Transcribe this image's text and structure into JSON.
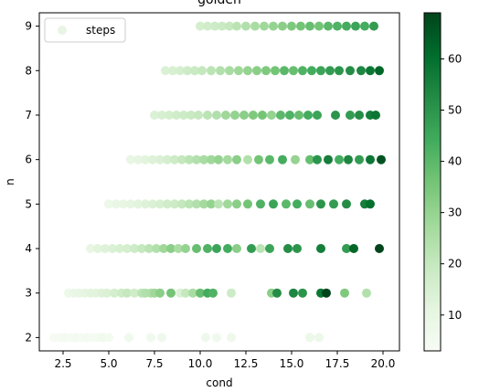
{
  "chart_data": {
    "type": "scatter",
    "title": "golden",
    "xlabel": "cond",
    "ylabel": "n",
    "xlim": [
      1.2,
      20.9
    ],
    "ylim": [
      1.7,
      9.3
    ],
    "xticks": [
      2.5,
      5.0,
      7.5,
      10.0,
      12.5,
      15.0,
      17.5,
      20.0
    ],
    "xtick_labels": [
      "2.5",
      "5.0",
      "7.5",
      "10.0",
      "12.5",
      "15.0",
      "17.5",
      "20.0"
    ],
    "yticks": [
      2,
      3,
      4,
      5,
      6,
      7,
      8,
      9
    ],
    "ytick_labels": [
      "2",
      "3",
      "4",
      "5",
      "6",
      "7",
      "8",
      "9"
    ],
    "legend": {
      "label": "steps",
      "position": "upper-left"
    },
    "colormap": "Greens",
    "colorbar": {
      "range": [
        3,
        69
      ],
      "ticks": [
        10,
        20,
        30,
        40,
        50,
        60
      ],
      "tick_labels": [
        "10",
        "20",
        "30",
        "40",
        "50",
        "60"
      ]
    },
    "series": [
      {
        "points": [
          {
            "n": 2,
            "x": 2.0,
            "v": 4
          },
          {
            "n": 2,
            "x": 2.3,
            "v": 4
          },
          {
            "n": 2,
            "x": 2.6,
            "v": 5
          },
          {
            "n": 2,
            "x": 2.9,
            "v": 4
          },
          {
            "n": 2,
            "x": 3.2,
            "v": 5
          },
          {
            "n": 2,
            "x": 3.5,
            "v": 4
          },
          {
            "n": 2,
            "x": 3.8,
            "v": 5
          },
          {
            "n": 2,
            "x": 4.1,
            "v": 4
          },
          {
            "n": 2,
            "x": 4.4,
            "v": 5
          },
          {
            "n": 2,
            "x": 4.7,
            "v": 6
          },
          {
            "n": 2,
            "x": 5.0,
            "v": 5
          },
          {
            "n": 2,
            "x": 6.1,
            "v": 6
          },
          {
            "n": 2,
            "x": 7.3,
            "v": 6
          },
          {
            "n": 2,
            "x": 7.9,
            "v": 7
          },
          {
            "n": 2,
            "x": 10.3,
            "v": 7
          },
          {
            "n": 2,
            "x": 10.9,
            "v": 6
          },
          {
            "n": 2,
            "x": 11.7,
            "v": 7
          },
          {
            "n": 2,
            "x": 16.0,
            "v": 8
          },
          {
            "n": 2,
            "x": 16.5,
            "v": 8
          },
          {
            "n": 3,
            "x": 2.8,
            "v": 8
          },
          {
            "n": 3,
            "x": 3.1,
            "v": 9
          },
          {
            "n": 3,
            "x": 3.4,
            "v": 10
          },
          {
            "n": 3,
            "x": 3.7,
            "v": 11
          },
          {
            "n": 3,
            "x": 4.0,
            "v": 12
          },
          {
            "n": 3,
            "x": 4.3,
            "v": 12
          },
          {
            "n": 3,
            "x": 4.6,
            "v": 13
          },
          {
            "n": 3,
            "x": 4.9,
            "v": 14
          },
          {
            "n": 3,
            "x": 5.3,
            "v": 16
          },
          {
            "n": 3,
            "x": 5.7,
            "v": 18
          },
          {
            "n": 3,
            "x": 6.0,
            "v": 20
          },
          {
            "n": 3,
            "x": 6.4,
            "v": 17
          },
          {
            "n": 3,
            "x": 6.8,
            "v": 22
          },
          {
            "n": 3,
            "x": 7.0,
            "v": 24
          },
          {
            "n": 3,
            "x": 7.3,
            "v": 25
          },
          {
            "n": 3,
            "x": 7.5,
            "v": 28
          },
          {
            "n": 3,
            "x": 7.8,
            "v": 32
          },
          {
            "n": 3,
            "x": 8.4,
            "v": 36
          },
          {
            "n": 3,
            "x": 8.9,
            "v": 14
          },
          {
            "n": 3,
            "x": 9.2,
            "v": 20
          },
          {
            "n": 3,
            "x": 9.6,
            "v": 26
          },
          {
            "n": 3,
            "x": 10.0,
            "v": 38
          },
          {
            "n": 3,
            "x": 10.4,
            "v": 44
          },
          {
            "n": 3,
            "x": 10.7,
            "v": 42
          },
          {
            "n": 3,
            "x": 11.7,
            "v": 18
          },
          {
            "n": 3,
            "x": 13.9,
            "v": 32
          },
          {
            "n": 3,
            "x": 14.2,
            "v": 52
          },
          {
            "n": 3,
            "x": 15.1,
            "v": 54
          },
          {
            "n": 3,
            "x": 15.6,
            "v": 50
          },
          {
            "n": 3,
            "x": 16.6,
            "v": 58
          },
          {
            "n": 3,
            "x": 16.9,
            "v": 69
          },
          {
            "n": 3,
            "x": 17.9,
            "v": 34
          },
          {
            "n": 3,
            "x": 19.1,
            "v": 24
          },
          {
            "n": 4,
            "x": 4.0,
            "v": 10
          },
          {
            "n": 4,
            "x": 4.4,
            "v": 12
          },
          {
            "n": 4,
            "x": 4.8,
            "v": 13
          },
          {
            "n": 4,
            "x": 5.2,
            "v": 14
          },
          {
            "n": 4,
            "x": 5.6,
            "v": 15
          },
          {
            "n": 4,
            "x": 6.0,
            "v": 16
          },
          {
            "n": 4,
            "x": 6.4,
            "v": 18
          },
          {
            "n": 4,
            "x": 6.8,
            "v": 20
          },
          {
            "n": 4,
            "x": 7.2,
            "v": 22
          },
          {
            "n": 4,
            "x": 7.6,
            "v": 24
          },
          {
            "n": 4,
            "x": 8.0,
            "v": 28
          },
          {
            "n": 4,
            "x": 8.4,
            "v": 32
          },
          {
            "n": 4,
            "x": 8.8,
            "v": 26
          },
          {
            "n": 4,
            "x": 9.2,
            "v": 30
          },
          {
            "n": 4,
            "x": 9.8,
            "v": 38
          },
          {
            "n": 4,
            "x": 10.4,
            "v": 42
          },
          {
            "n": 4,
            "x": 10.9,
            "v": 46
          },
          {
            "n": 4,
            "x": 11.5,
            "v": 44
          },
          {
            "n": 4,
            "x": 12.0,
            "v": 32
          },
          {
            "n": 4,
            "x": 12.8,
            "v": 48
          },
          {
            "n": 4,
            "x": 13.3,
            "v": 22
          },
          {
            "n": 4,
            "x": 13.8,
            "v": 46
          },
          {
            "n": 4,
            "x": 14.8,
            "v": 52
          },
          {
            "n": 4,
            "x": 15.3,
            "v": 50
          },
          {
            "n": 4,
            "x": 16.6,
            "v": 56
          },
          {
            "n": 4,
            "x": 18.0,
            "v": 48
          },
          {
            "n": 4,
            "x": 18.4,
            "v": 62
          },
          {
            "n": 4,
            "x": 19.8,
            "v": 69
          },
          {
            "n": 5,
            "x": 5.0,
            "v": 8
          },
          {
            "n": 5,
            "x": 5.4,
            "v": 9
          },
          {
            "n": 5,
            "x": 5.8,
            "v": 10
          },
          {
            "n": 5,
            "x": 6.2,
            "v": 11
          },
          {
            "n": 5,
            "x": 6.6,
            "v": 12
          },
          {
            "n": 5,
            "x": 7.0,
            "v": 13
          },
          {
            "n": 5,
            "x": 7.4,
            "v": 14
          },
          {
            "n": 5,
            "x": 7.8,
            "v": 15
          },
          {
            "n": 5,
            "x": 8.2,
            "v": 17
          },
          {
            "n": 5,
            "x": 8.6,
            "v": 18
          },
          {
            "n": 5,
            "x": 9.0,
            "v": 20
          },
          {
            "n": 5,
            "x": 9.4,
            "v": 22
          },
          {
            "n": 5,
            "x": 9.8,
            "v": 24
          },
          {
            "n": 5,
            "x": 10.2,
            "v": 27
          },
          {
            "n": 5,
            "x": 10.6,
            "v": 30
          },
          {
            "n": 5,
            "x": 11.0,
            "v": 22
          },
          {
            "n": 5,
            "x": 11.5,
            "v": 28
          },
          {
            "n": 5,
            "x": 12.0,
            "v": 32
          },
          {
            "n": 5,
            "x": 12.6,
            "v": 36
          },
          {
            "n": 5,
            "x": 13.3,
            "v": 42
          },
          {
            "n": 5,
            "x": 14.0,
            "v": 46
          },
          {
            "n": 5,
            "x": 14.7,
            "v": 40
          },
          {
            "n": 5,
            "x": 15.3,
            "v": 44
          },
          {
            "n": 5,
            "x": 16.0,
            "v": 38
          },
          {
            "n": 5,
            "x": 16.6,
            "v": 50
          },
          {
            "n": 5,
            "x": 17.3,
            "v": 48
          },
          {
            "n": 5,
            "x": 18.0,
            "v": 52
          },
          {
            "n": 5,
            "x": 19.0,
            "v": 56
          },
          {
            "n": 5,
            "x": 19.3,
            "v": 60
          },
          {
            "n": 6,
            "x": 6.2,
            "v": 10
          },
          {
            "n": 6,
            "x": 6.6,
            "v": 11
          },
          {
            "n": 6,
            "x": 7.0,
            "v": 12
          },
          {
            "n": 6,
            "x": 7.4,
            "v": 13
          },
          {
            "n": 6,
            "x": 7.8,
            "v": 14
          },
          {
            "n": 6,
            "x": 8.2,
            "v": 16
          },
          {
            "n": 6,
            "x": 8.6,
            "v": 18
          },
          {
            "n": 6,
            "x": 9.0,
            "v": 20
          },
          {
            "n": 6,
            "x": 9.4,
            "v": 22
          },
          {
            "n": 6,
            "x": 9.8,
            "v": 24
          },
          {
            "n": 6,
            "x": 10.2,
            "v": 26
          },
          {
            "n": 6,
            "x": 10.6,
            "v": 28
          },
          {
            "n": 6,
            "x": 11.0,
            "v": 30
          },
          {
            "n": 6,
            "x": 11.5,
            "v": 27
          },
          {
            "n": 6,
            "x": 12.0,
            "v": 32
          },
          {
            "n": 6,
            "x": 12.6,
            "v": 24
          },
          {
            "n": 6,
            "x": 13.2,
            "v": 36
          },
          {
            "n": 6,
            "x": 13.8,
            "v": 40
          },
          {
            "n": 6,
            "x": 14.5,
            "v": 44
          },
          {
            "n": 6,
            "x": 15.2,
            "v": 30
          },
          {
            "n": 6,
            "x": 16.0,
            "v": 38
          },
          {
            "n": 6,
            "x": 16.4,
            "v": 50
          },
          {
            "n": 6,
            "x": 17.0,
            "v": 56
          },
          {
            "n": 6,
            "x": 17.6,
            "v": 44
          },
          {
            "n": 6,
            "x": 18.1,
            "v": 54
          },
          {
            "n": 6,
            "x": 18.7,
            "v": 48
          },
          {
            "n": 6,
            "x": 19.3,
            "v": 58
          },
          {
            "n": 6,
            "x": 19.9,
            "v": 66
          },
          {
            "n": 7,
            "x": 7.5,
            "v": 14
          },
          {
            "n": 7,
            "x": 7.9,
            "v": 15
          },
          {
            "n": 7,
            "x": 8.3,
            "v": 16
          },
          {
            "n": 7,
            "x": 8.7,
            "v": 17
          },
          {
            "n": 7,
            "x": 9.1,
            "v": 18
          },
          {
            "n": 7,
            "x": 9.5,
            "v": 19
          },
          {
            "n": 7,
            "x": 9.9,
            "v": 20
          },
          {
            "n": 7,
            "x": 10.4,
            "v": 22
          },
          {
            "n": 7,
            "x": 10.9,
            "v": 24
          },
          {
            "n": 7,
            "x": 11.4,
            "v": 28
          },
          {
            "n": 7,
            "x": 11.9,
            "v": 30
          },
          {
            "n": 7,
            "x": 12.4,
            "v": 32
          },
          {
            "n": 7,
            "x": 12.9,
            "v": 34
          },
          {
            "n": 7,
            "x": 13.4,
            "v": 36
          },
          {
            "n": 7,
            "x": 13.9,
            "v": 30
          },
          {
            "n": 7,
            "x": 14.4,
            "v": 40
          },
          {
            "n": 7,
            "x": 14.9,
            "v": 42
          },
          {
            "n": 7,
            "x": 15.4,
            "v": 38
          },
          {
            "n": 7,
            "x": 15.9,
            "v": 44
          },
          {
            "n": 7,
            "x": 16.4,
            "v": 46
          },
          {
            "n": 7,
            "x": 17.4,
            "v": 50
          },
          {
            "n": 7,
            "x": 18.2,
            "v": 48
          },
          {
            "n": 7,
            "x": 18.7,
            "v": 52
          },
          {
            "n": 7,
            "x": 19.3,
            "v": 56
          },
          {
            "n": 7,
            "x": 19.6,
            "v": 58
          },
          {
            "n": 8,
            "x": 8.1,
            "v": 14
          },
          {
            "n": 8,
            "x": 8.5,
            "v": 15
          },
          {
            "n": 8,
            "x": 8.9,
            "v": 16
          },
          {
            "n": 8,
            "x": 9.3,
            "v": 18
          },
          {
            "n": 8,
            "x": 9.7,
            "v": 19
          },
          {
            "n": 8,
            "x": 10.1,
            "v": 20
          },
          {
            "n": 8,
            "x": 10.6,
            "v": 22
          },
          {
            "n": 8,
            "x": 11.1,
            "v": 24
          },
          {
            "n": 8,
            "x": 11.6,
            "v": 26
          },
          {
            "n": 8,
            "x": 12.1,
            "v": 28
          },
          {
            "n": 8,
            "x": 12.6,
            "v": 30
          },
          {
            "n": 8,
            "x": 13.1,
            "v": 32
          },
          {
            "n": 8,
            "x": 13.6,
            "v": 34
          },
          {
            "n": 8,
            "x": 14.1,
            "v": 36
          },
          {
            "n": 8,
            "x": 14.6,
            "v": 40
          },
          {
            "n": 8,
            "x": 15.1,
            "v": 38
          },
          {
            "n": 8,
            "x": 15.6,
            "v": 42
          },
          {
            "n": 8,
            "x": 16.1,
            "v": 44
          },
          {
            "n": 8,
            "x": 16.6,
            "v": 46
          },
          {
            "n": 8,
            "x": 17.1,
            "v": 48
          },
          {
            "n": 8,
            "x": 17.6,
            "v": 50
          },
          {
            "n": 8,
            "x": 18.2,
            "v": 52
          },
          {
            "n": 8,
            "x": 18.8,
            "v": 54
          },
          {
            "n": 8,
            "x": 19.3,
            "v": 58
          },
          {
            "n": 8,
            "x": 19.8,
            "v": 62
          },
          {
            "n": 9,
            "x": 10.0,
            "v": 16
          },
          {
            "n": 9,
            "x": 10.4,
            "v": 17
          },
          {
            "n": 9,
            "x": 10.8,
            "v": 18
          },
          {
            "n": 9,
            "x": 11.2,
            "v": 19
          },
          {
            "n": 9,
            "x": 11.6,
            "v": 20
          },
          {
            "n": 9,
            "x": 12.0,
            "v": 22
          },
          {
            "n": 9,
            "x": 12.5,
            "v": 24
          },
          {
            "n": 9,
            "x": 13.0,
            "v": 26
          },
          {
            "n": 9,
            "x": 13.5,
            "v": 28
          },
          {
            "n": 9,
            "x": 14.0,
            "v": 30
          },
          {
            "n": 9,
            "x": 14.5,
            "v": 32
          },
          {
            "n": 9,
            "x": 15.0,
            "v": 34
          },
          {
            "n": 9,
            "x": 15.5,
            "v": 36
          },
          {
            "n": 9,
            "x": 16.0,
            "v": 38
          },
          {
            "n": 9,
            "x": 16.5,
            "v": 36
          },
          {
            "n": 9,
            "x": 17.0,
            "v": 40
          },
          {
            "n": 9,
            "x": 17.5,
            "v": 42
          },
          {
            "n": 9,
            "x": 18.0,
            "v": 44
          },
          {
            "n": 9,
            "x": 18.5,
            "v": 46
          },
          {
            "n": 9,
            "x": 19.0,
            "v": 44
          },
          {
            "n": 9,
            "x": 19.5,
            "v": 48
          }
        ]
      }
    ]
  }
}
